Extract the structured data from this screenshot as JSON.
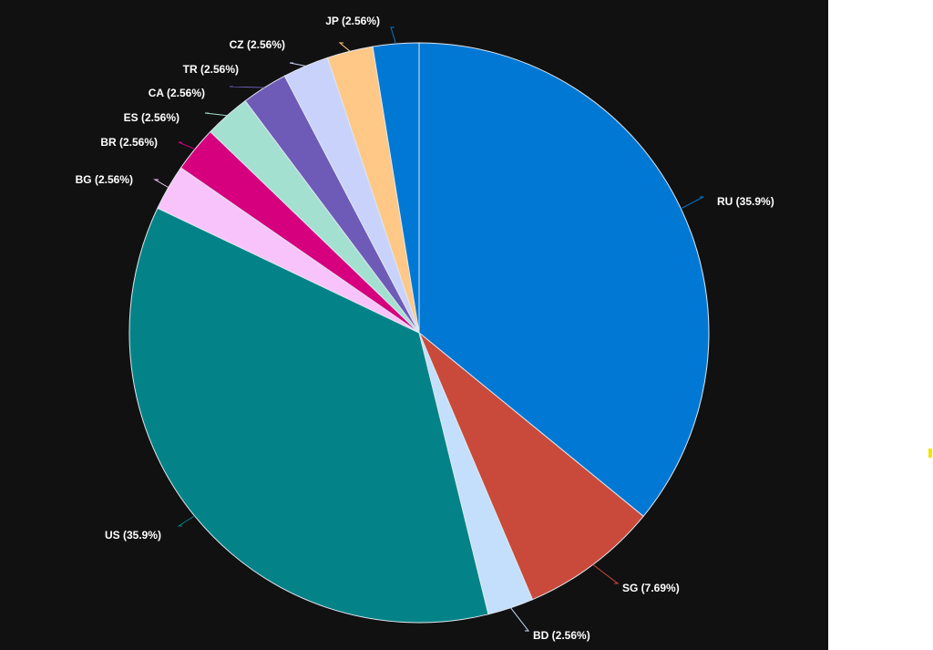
{
  "chart_data": {
    "type": "pie",
    "title": "",
    "start_angle_deg": 0,
    "direction": "clockwise",
    "slices": [
      {
        "label": "RU",
        "percent": 35.9,
        "display": "RU (35.9%)",
        "color": "#0078d4"
      },
      {
        "label": "SG",
        "percent": 7.69,
        "display": "SG (7.69%)",
        "color": "#c94a3a"
      },
      {
        "label": "BD",
        "percent": 2.56,
        "display": "BD (2.56%)",
        "color": "#c4dffb"
      },
      {
        "label": "US",
        "percent": 35.9,
        "display": "US (35.9%)",
        "color": "#038387"
      },
      {
        "label": "BG",
        "percent": 2.56,
        "display": "BG (2.56%)",
        "color": "#f8c3fb"
      },
      {
        "label": "BR",
        "percent": 2.56,
        "display": "BR (2.56%)",
        "color": "#d6007f"
      },
      {
        "label": "ES",
        "percent": 2.56,
        "display": "ES (2.56%)",
        "color": "#a3e0d0"
      },
      {
        "label": "CA",
        "percent": 2.56,
        "display": "CA (2.56%)",
        "color": "#6e5bb8"
      },
      {
        "label": "TR",
        "percent": 2.56,
        "display": "TR (2.56%)",
        "color": "#c9d2fb"
      },
      {
        "label": "CZ",
        "percent": 2.56,
        "display": "CZ (2.56%)",
        "color": "#ffc887"
      },
      {
        "label": "JP",
        "percent": 2.56,
        "display": "JP (2.56%)",
        "color": "#0078d4"
      }
    ],
    "legend": "none",
    "data_labels": "outside-with-leader-lines"
  },
  "theme": {
    "panel_background": "#111111",
    "page_background": "#ffffff",
    "label_color": "#ffffff",
    "slice_border": "#dfe6ee",
    "side_marker_color": "#f2e600"
  }
}
